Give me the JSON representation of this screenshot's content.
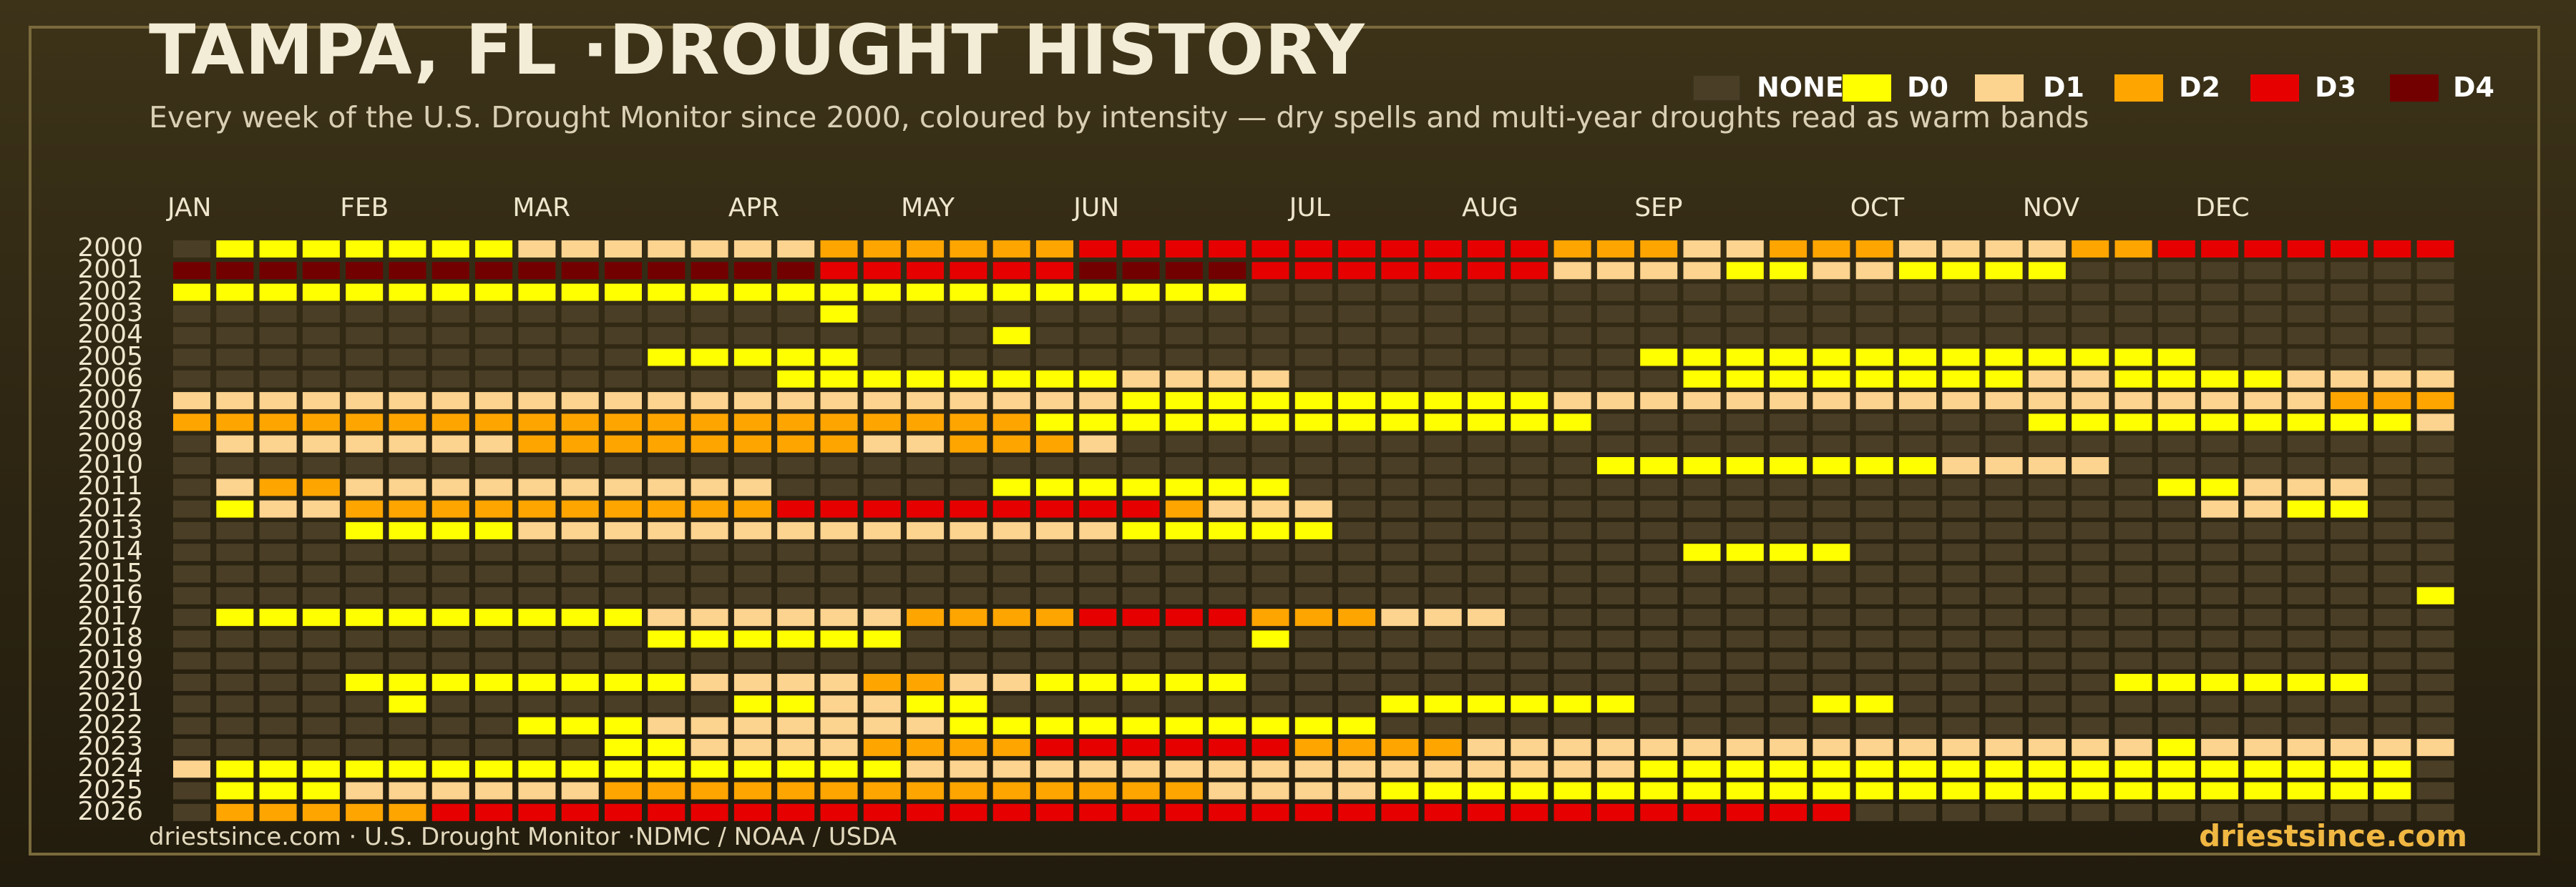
{
  "title": "TAMPA, FL ·DROUGHT HISTORY",
  "subtitle": "Every week of the U.S. Drought Monitor since 2000, coloured by intensity — dry spells and multi-year droughts read as warm bands",
  "footer": {
    "source": "driestsince.com  · U.S. Drought Monitor ·NDMC / NOAA / USDA",
    "brand": "driestsince.com"
  },
  "colors": {
    "background": "#2e2614",
    "frame": "#7a6a3c",
    "brand": "#f0b742"
  },
  "chart_data": {
    "type": "heatmap",
    "title": "TAMPA, FL ·DROUGHT HISTORY",
    "subtitle": "Every week of the U.S. Drought Monitor since 2000, coloured by intensity — dry spells and multi-year droughts read as warm bands",
    "x_unit": "week of year",
    "weeks_per_year": 53,
    "month_labels": [
      "JAN",
      "FEB",
      "MAR",
      "APR",
      "MAY",
      "JUN",
      "JUL",
      "AUG",
      "SEP",
      "OCT",
      "NOV",
      "DEC"
    ],
    "month_start_weeks": [
      1,
      5,
      9,
      14,
      18,
      22,
      27,
      31,
      35,
      40,
      44,
      48
    ],
    "levels": [
      {
        "code": -1,
        "label": "NONE",
        "color": "#4a3f26"
      },
      {
        "code": 0,
        "label": "D0",
        "color": "#ffff00"
      },
      {
        "code": 1,
        "label": "D1",
        "color": "#fcd38f"
      },
      {
        "code": 2,
        "label": "D2",
        "color": "#ffa500"
      },
      {
        "code": 3,
        "label": "D3",
        "color": "#e60000"
      },
      {
        "code": 4,
        "label": "D4",
        "color": "#730000"
      }
    ],
    "legend_position": "top-right",
    "years": [
      2000,
      2001,
      2002,
      2003,
      2004,
      2005,
      2006,
      2007,
      2008,
      2009,
      2010,
      2011,
      2012,
      2013,
      2014,
      2015,
      2016,
      2017,
      2018,
      2019,
      2020,
      2021,
      2022,
      2023,
      2024,
      2025,
      2026
    ],
    "rows": [
      ".000000011111112222223333333333322211222111122333333344",
      "44444444444444433333344443333333111100110000..........",
      "0000000000000000000000000...........................",
      "...............0........................................",
      "...................0...................................",
      "...........00000..................0000000000000.....",
      "..............000000001111.........000000001100001111",
      "11111111111111111111110000000000111111111111111111222",
      "222222222222222222220000000000000..........00000000011",
      ".111111122222222112221.............................",
      ".................................000000001111.....",
      ".1221111111111.....0000000....................00111",
      ".01122222222223333333332111....................1100",
      "....00001111111111111100000.............................",
      "...................................0000.................",
      "...................................................",
      "....................................................00",
      ".000000000011111122223333222111....................",
      "...........000000........0.......................",
      "........................................................",
      "....000000001111221100000....................000000",
      ".....0.......001100.........000000....00..........",
      "........00011111110000000000................",
      "..........0011112222333333222211111111111111110111111",
      "1000000000000000011111111111111111000000000000000000",
      ".000111111222222222222221111000000000000000000000000",
      ".22222333333333333333333333333333333333.............."
    ]
  }
}
